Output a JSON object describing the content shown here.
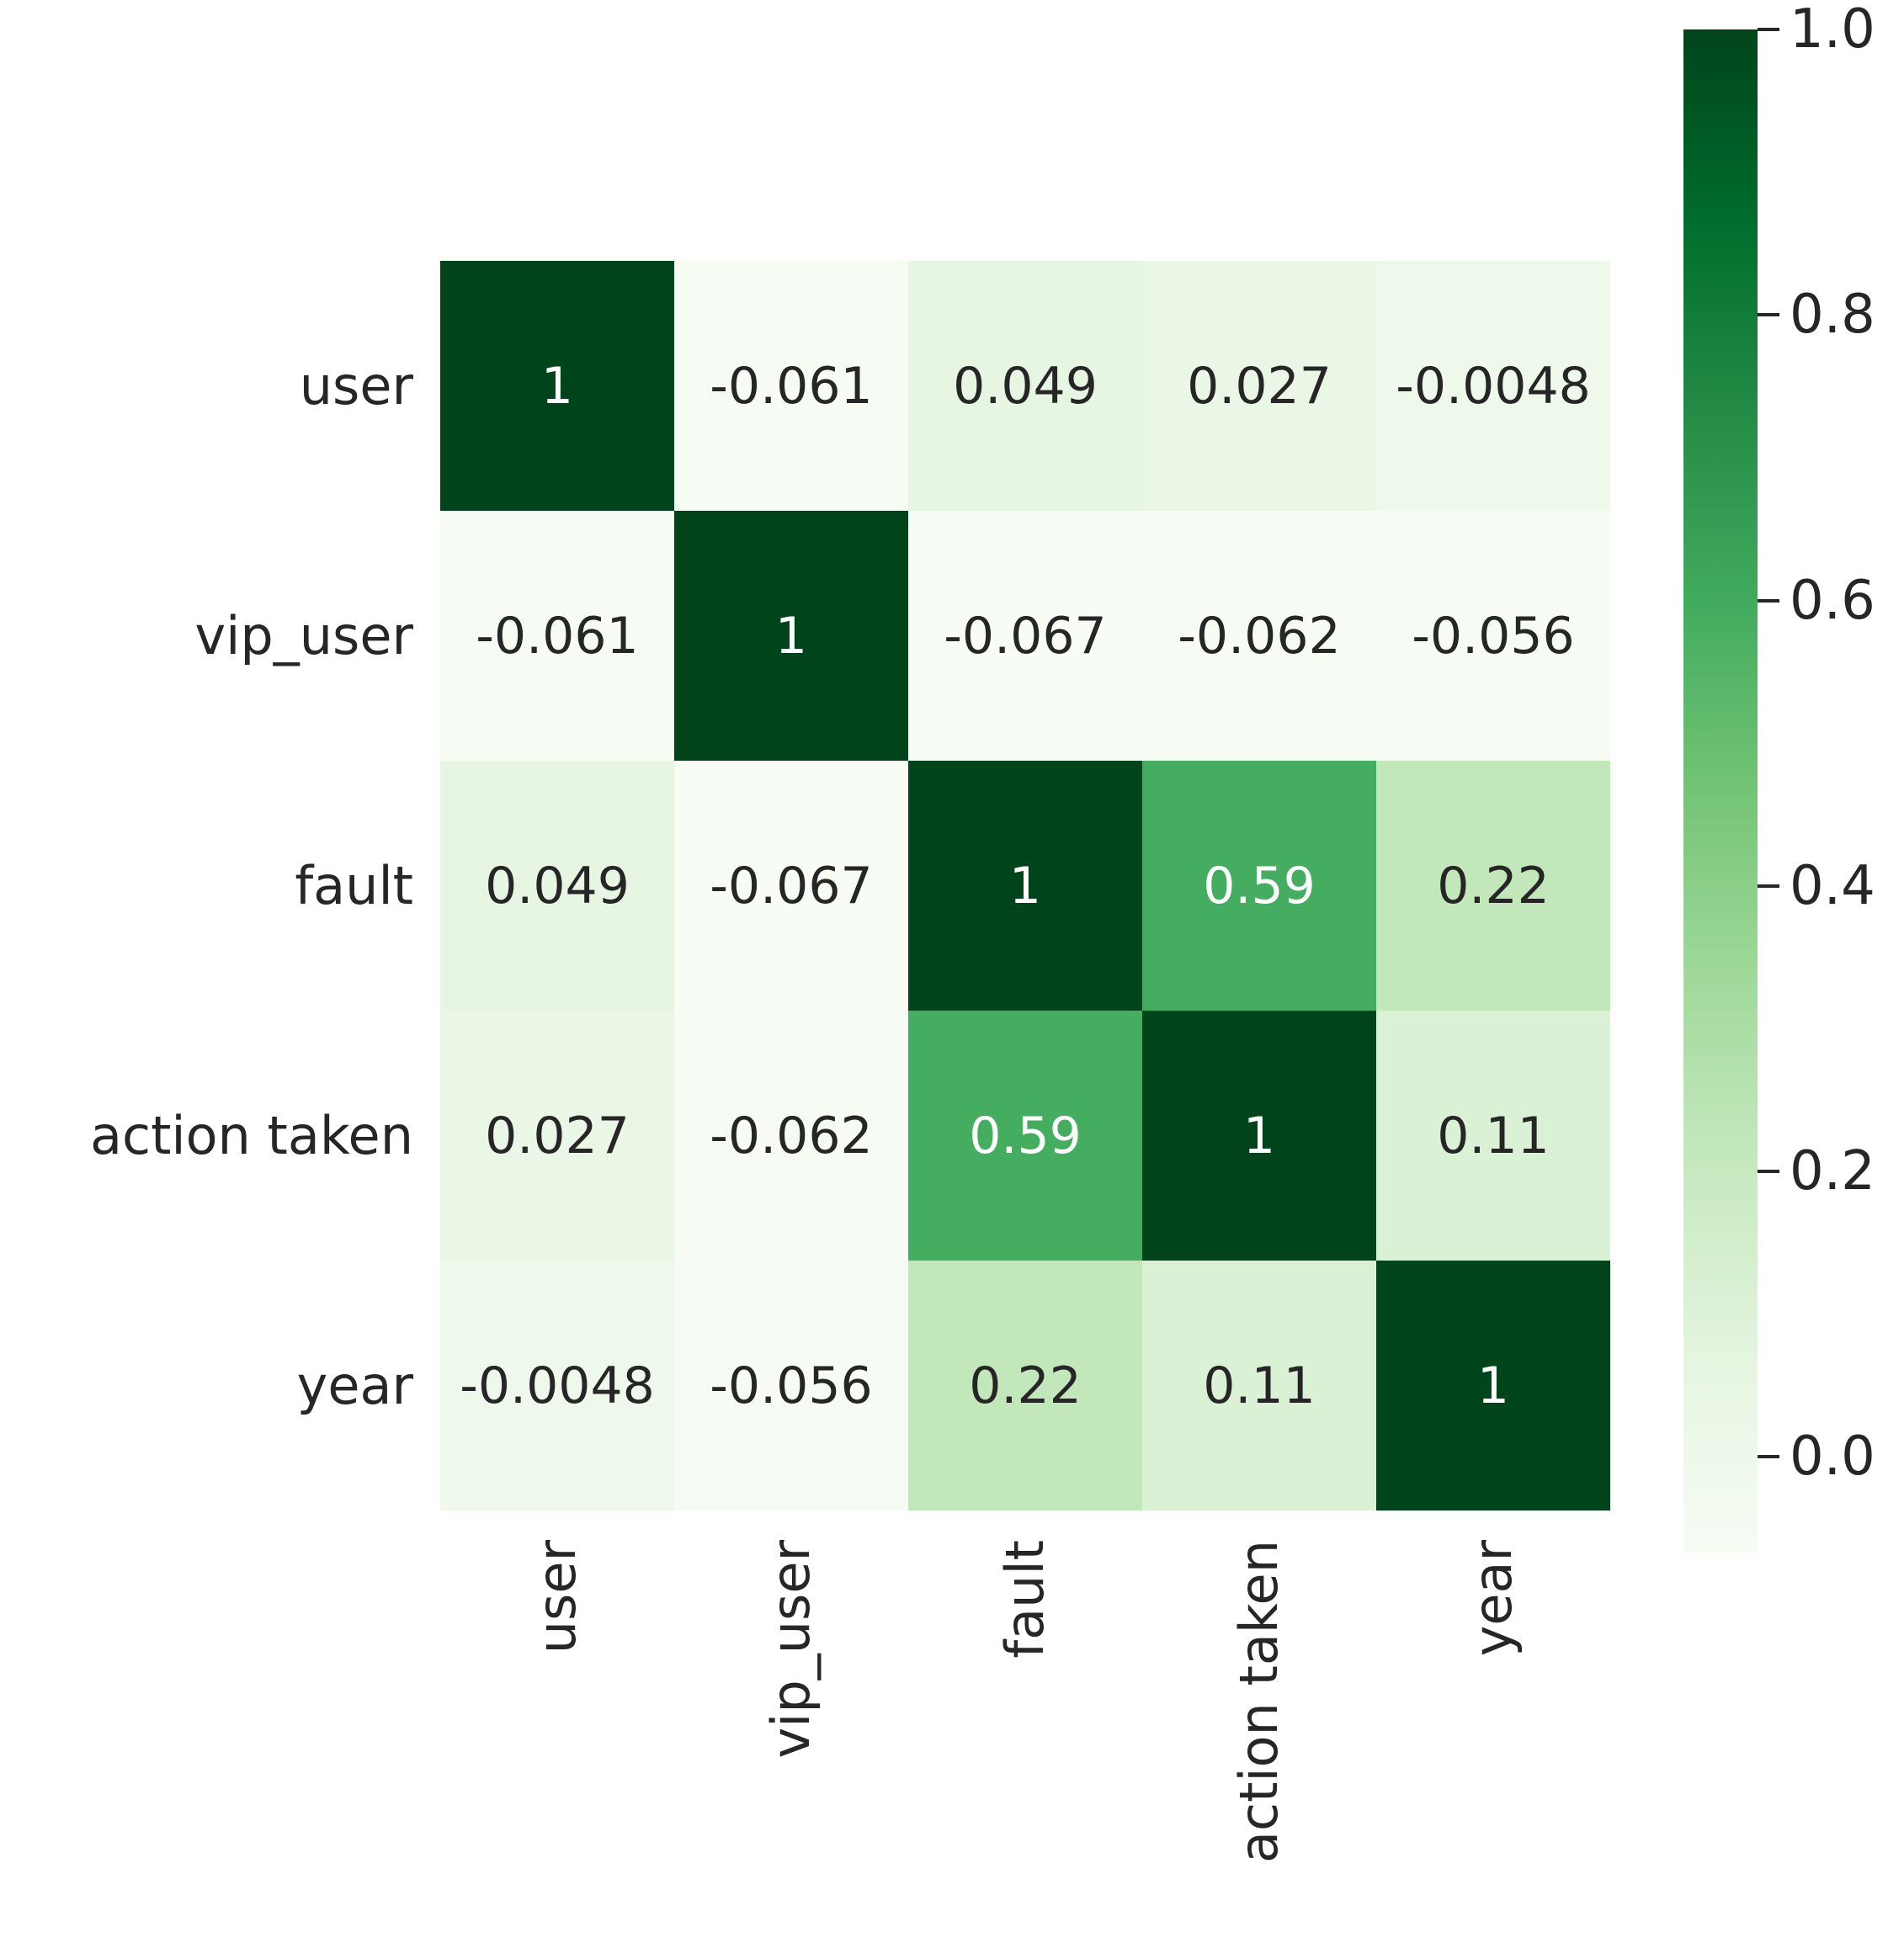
{
  "figure": {
    "background": "#ffffff",
    "text_color": "#262626"
  },
  "chart_data": {
    "type": "heatmap",
    "title": "",
    "xlabel": "",
    "ylabel": "",
    "x_categories": [
      "user",
      "vip_user",
      "fault",
      "action taken",
      "year"
    ],
    "y_categories": [
      "user",
      "vip_user",
      "fault",
      "action taken",
      "year"
    ],
    "matrix": [
      [
        1,
        -0.061,
        0.049,
        0.027,
        -0.0048
      ],
      [
        -0.061,
        1,
        -0.067,
        -0.062,
        -0.056
      ],
      [
        0.049,
        -0.067,
        1,
        0.59,
        0.22
      ],
      [
        0.027,
        -0.062,
        0.59,
        1,
        0.11
      ],
      [
        -0.0048,
        -0.056,
        0.22,
        0.11,
        1
      ]
    ],
    "cell_labels": [
      [
        "1",
        "-0.061",
        "0.049",
        "0.027",
        "-0.0048"
      ],
      [
        "-0.061",
        "1",
        "-0.067",
        "-0.062",
        "-0.056"
      ],
      [
        "0.049",
        "-0.067",
        "1",
        "0.59",
        "0.22"
      ],
      [
        "0.027",
        "-0.062",
        "0.59",
        "1",
        "0.11"
      ],
      [
        "-0.0048",
        "-0.056",
        "0.22",
        "0.11",
        "1"
      ]
    ],
    "grid": "off",
    "colormap": {
      "name": "Greens",
      "stops": [
        "#f7fcf5",
        "#e5f5e0",
        "#c7e9c0",
        "#a1d99b",
        "#74c476",
        "#41ab5d",
        "#238b45",
        "#006d2c",
        "#00441b"
      ]
    },
    "color_range": [
      -0.067,
      1.0
    ],
    "annotation_colors": {
      "on_dark": "#ffffff",
      "on_light": "#262626"
    },
    "colorbar": {
      "position": "right",
      "tick_labels": [
        "1.0",
        "0.8",
        "0.6",
        "0.4",
        "0.2",
        "0.0"
      ],
      "tick_values": [
        1.0,
        0.8,
        0.6,
        0.4,
        0.2,
        0.0
      ]
    }
  }
}
